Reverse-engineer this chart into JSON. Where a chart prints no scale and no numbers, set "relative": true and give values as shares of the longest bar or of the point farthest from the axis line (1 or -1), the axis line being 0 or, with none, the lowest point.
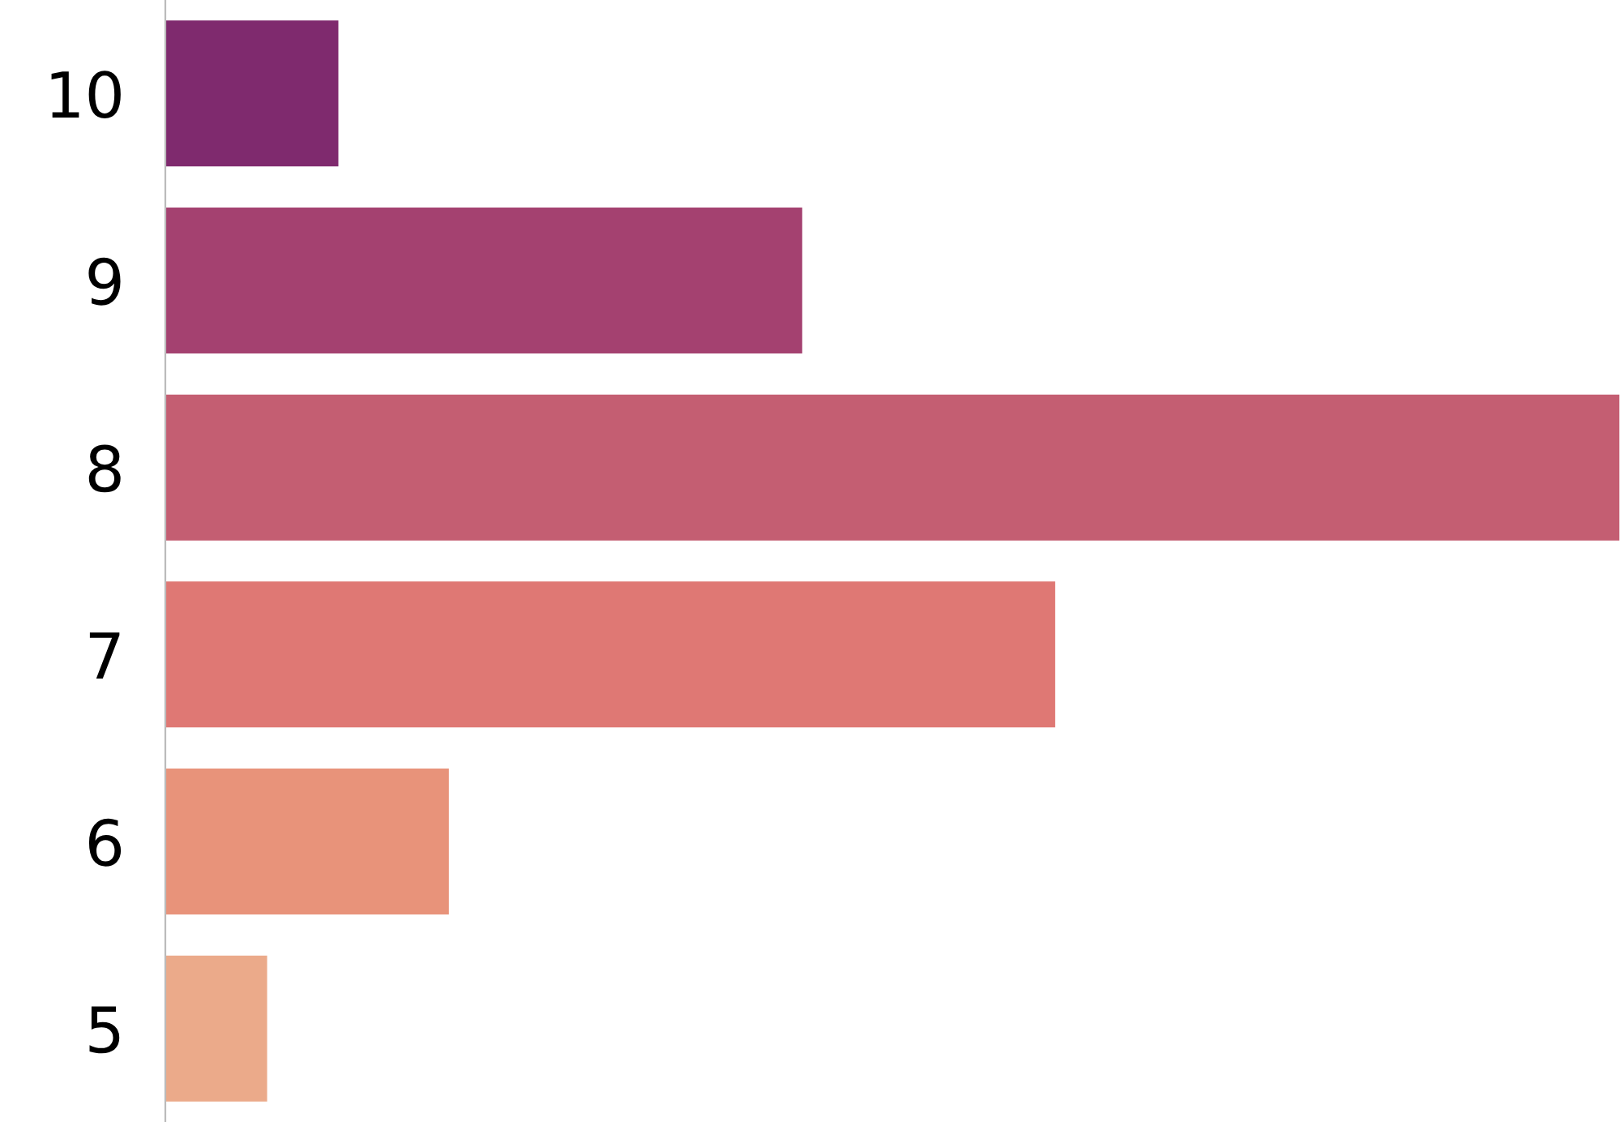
{
  "chart_data": {
    "type": "bar",
    "orientation": "horizontal",
    "relative": true,
    "categories": [
      "10",
      "9",
      "8",
      "7",
      "6",
      "5"
    ],
    "values": [
      0.119,
      0.438,
      1,
      0.612,
      0.195,
      0.07
    ],
    "colors": [
      "#7f2a6e",
      "#a44170",
      "#c45e72",
      "#df7874",
      "#e8937a",
      "#ebaa8a"
    ],
    "grid": false,
    "legend": false
  }
}
